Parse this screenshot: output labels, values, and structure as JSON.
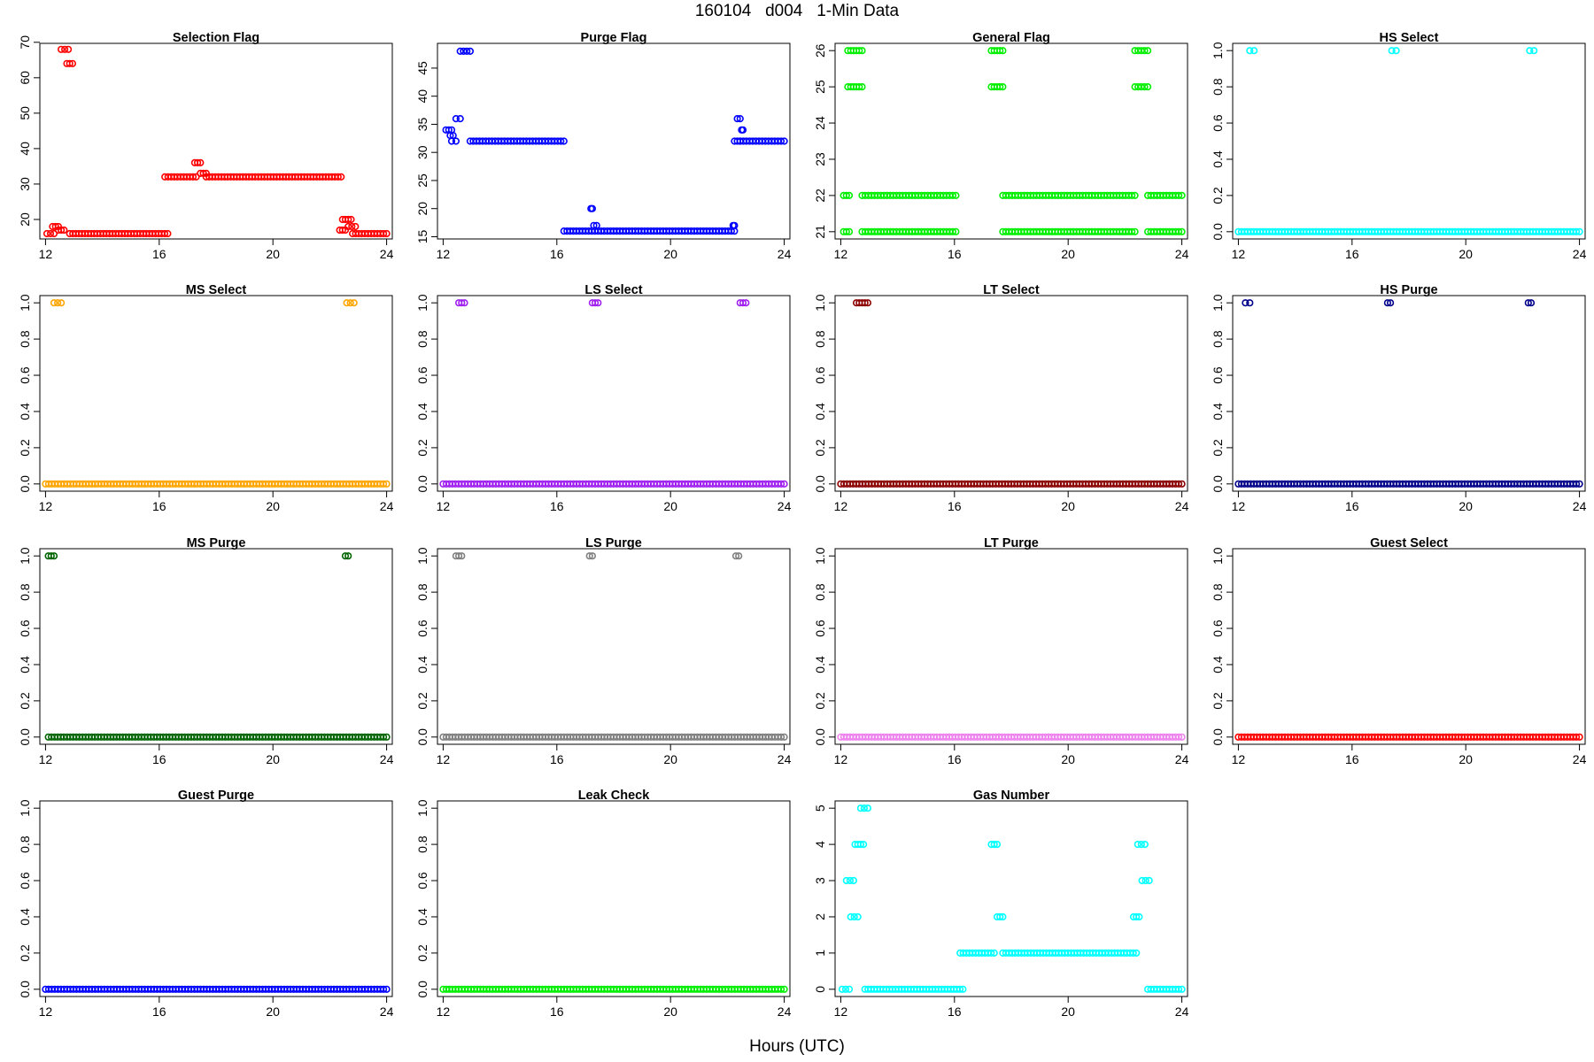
{
  "figure": {
    "title": "160104   d004   1-Min Data",
    "xlabel": "Hours (UTC)"
  },
  "chart_data": [
    {
      "type": "scatter",
      "title": "Selection Flag",
      "color": "#ff0000",
      "xlim": [
        11.8,
        24.2
      ],
      "xticks": [
        12,
        16,
        20,
        24
      ],
      "ylim": [
        14.5,
        69.7
      ],
      "yticks": [
        20,
        30,
        40,
        50,
        60,
        70
      ],
      "segments": [
        [
          12.05,
          12.3,
          16
        ],
        [
          12.25,
          12.45,
          18
        ],
        [
          12.45,
          12.65,
          17
        ],
        [
          12.55,
          12.8,
          68
        ],
        [
          12.75,
          12.95,
          64
        ],
        [
          12.85,
          16.3,
          16
        ],
        [
          16.2,
          17.3,
          32
        ],
        [
          17.25,
          17.45,
          36
        ],
        [
          17.45,
          17.65,
          33
        ],
        [
          17.65,
          22.4,
          32
        ],
        [
          22.35,
          22.55,
          17
        ],
        [
          22.45,
          22.75,
          20
        ],
        [
          22.65,
          22.9,
          18
        ],
        [
          22.8,
          24.0,
          16
        ]
      ]
    },
    {
      "type": "scatter",
      "title": "Purge Flag",
      "color": "#0000ff",
      "xlim": [
        11.8,
        24.2
      ],
      "xticks": [
        12,
        16,
        20,
        24
      ],
      "ylim": [
        14.6,
        49.4
      ],
      "yticks": [
        15,
        20,
        25,
        30,
        35,
        40,
        45
      ],
      "segments": [
        [
          12.1,
          12.3,
          34
        ],
        [
          12.25,
          12.35,
          33
        ],
        [
          12.3,
          12.45,
          32
        ],
        [
          12.45,
          12.6,
          36
        ],
        [
          12.6,
          12.95,
          48
        ],
        [
          12.95,
          16.25,
          32
        ],
        [
          16.25,
          22.25,
          16
        ],
        [
          17.2,
          17.25,
          20
        ],
        [
          17.3,
          17.4,
          17
        ],
        [
          22.2,
          22.25,
          17
        ],
        [
          22.25,
          22.45,
          32
        ],
        [
          22.35,
          22.45,
          36
        ],
        [
          22.5,
          22.55,
          34
        ],
        [
          22.45,
          24.0,
          32
        ]
      ]
    },
    {
      "type": "scatter",
      "title": "General Flag",
      "color": "#00ee00",
      "xlim": [
        11.8,
        24.2
      ],
      "xticks": [
        12,
        16,
        20,
        24
      ],
      "ylim": [
        20.8,
        26.2
      ],
      "yticks": [
        21,
        22,
        23,
        24,
        25,
        26
      ],
      "segments": [
        [
          12.1,
          12.3,
          22
        ],
        [
          12.1,
          12.3,
          21
        ],
        [
          12.25,
          12.75,
          26
        ],
        [
          12.25,
          12.75,
          25
        ],
        [
          12.75,
          16.05,
          22
        ],
        [
          12.75,
          16.05,
          21
        ],
        [
          17.3,
          17.7,
          26
        ],
        [
          17.3,
          17.7,
          25
        ],
        [
          17.7,
          22.35,
          22
        ],
        [
          17.7,
          22.35,
          21
        ],
        [
          22.35,
          22.8,
          26
        ],
        [
          22.35,
          22.8,
          25
        ],
        [
          22.8,
          24.0,
          22
        ],
        [
          22.8,
          24.0,
          21
        ]
      ]
    },
    {
      "type": "scatter",
      "title": "HS Select",
      "color": "#00ffff",
      "xlim": [
        11.8,
        24.2
      ],
      "xticks": [
        12,
        16,
        20,
        24
      ],
      "ylim": [
        -0.04,
        1.04
      ],
      "yticks": [
        0.0,
        0.2,
        0.4,
        0.6,
        0.8,
        1.0
      ],
      "yticklabels": [
        "0.0",
        "0.2",
        "0.4",
        "0.6",
        "0.8",
        "1.0"
      ],
      "segments": [
        [
          12.0,
          24.0,
          0
        ],
        [
          12.4,
          12.55,
          1
        ],
        [
          17.4,
          17.55,
          1
        ],
        [
          22.25,
          22.4,
          1
        ]
      ]
    },
    {
      "type": "scatter",
      "title": "MS Select",
      "color": "#ffa500",
      "xlim": [
        11.8,
        24.2
      ],
      "xticks": [
        12,
        16,
        20,
        24
      ],
      "ylim": [
        -0.04,
        1.04
      ],
      "yticks": [
        0.0,
        0.2,
        0.4,
        0.6,
        0.8,
        1.0
      ],
      "yticklabels": [
        "0.0",
        "0.2",
        "0.4",
        "0.6",
        "0.8",
        "1.0"
      ],
      "segments": [
        [
          12.0,
          24.0,
          0
        ],
        [
          12.3,
          12.55,
          1
        ],
        [
          22.6,
          22.85,
          1
        ]
      ]
    },
    {
      "type": "scatter",
      "title": "LS Select",
      "color": "#a020f0",
      "xlim": [
        11.8,
        24.2
      ],
      "xticks": [
        12,
        16,
        20,
        24
      ],
      "ylim": [
        -0.04,
        1.04
      ],
      "yticks": [
        0.0,
        0.2,
        0.4,
        0.6,
        0.8,
        1.0
      ],
      "yticklabels": [
        "0.0",
        "0.2",
        "0.4",
        "0.6",
        "0.8",
        "1.0"
      ],
      "segments": [
        [
          12.0,
          24.0,
          0
        ],
        [
          12.55,
          12.75,
          1
        ],
        [
          17.25,
          17.45,
          1
        ],
        [
          22.45,
          22.65,
          1
        ]
      ]
    },
    {
      "type": "scatter",
      "title": "LT Select",
      "color": "#8b0000",
      "xlim": [
        11.8,
        24.2
      ],
      "xticks": [
        12,
        16,
        20,
        24
      ],
      "ylim": [
        -0.04,
        1.04
      ],
      "yticks": [
        0.0,
        0.2,
        0.4,
        0.6,
        0.8,
        1.0
      ],
      "yticklabels": [
        "0.0",
        "0.2",
        "0.4",
        "0.6",
        "0.8",
        "1.0"
      ],
      "segments": [
        [
          12.0,
          24.0,
          0
        ],
        [
          12.55,
          12.95,
          1
        ]
      ]
    },
    {
      "type": "scatter",
      "title": "HS Purge",
      "color": "#00008b",
      "xlim": [
        11.8,
        24.2
      ],
      "xticks": [
        12,
        16,
        20,
        24
      ],
      "ylim": [
        -0.04,
        1.04
      ],
      "yticks": [
        0.0,
        0.2,
        0.4,
        0.6,
        0.8,
        1.0
      ],
      "yticklabels": [
        "0.0",
        "0.2",
        "0.4",
        "0.6",
        "0.8",
        "1.0"
      ],
      "segments": [
        [
          12.0,
          24.0,
          0
        ],
        [
          12.25,
          12.4,
          1
        ],
        [
          17.25,
          17.35,
          1
        ],
        [
          22.2,
          22.3,
          1
        ]
      ]
    },
    {
      "type": "scatter",
      "title": "MS Purge",
      "color": "#006400",
      "xlim": [
        11.8,
        24.2
      ],
      "xticks": [
        12,
        16,
        20,
        24
      ],
      "ylim": [
        -0.04,
        1.04
      ],
      "yticks": [
        0.0,
        0.2,
        0.4,
        0.6,
        0.8,
        1.0
      ],
      "yticklabels": [
        "0.0",
        "0.2",
        "0.4",
        "0.6",
        "0.8",
        "1.0"
      ],
      "segments": [
        [
          12.1,
          24.0,
          0
        ],
        [
          12.1,
          12.3,
          1
        ],
        [
          22.55,
          22.65,
          1
        ]
      ]
    },
    {
      "type": "scatter",
      "title": "LS Purge",
      "color": "#808080",
      "xlim": [
        11.8,
        24.2
      ],
      "xticks": [
        12,
        16,
        20,
        24
      ],
      "ylim": [
        -0.04,
        1.04
      ],
      "yticks": [
        0.0,
        0.2,
        0.4,
        0.6,
        0.8,
        1.0
      ],
      "yticklabels": [
        "0.0",
        "0.2",
        "0.4",
        "0.6",
        "0.8",
        "1.0"
      ],
      "segments": [
        [
          12.0,
          24.0,
          0
        ],
        [
          12.45,
          12.65,
          1
        ],
        [
          17.15,
          17.25,
          1
        ],
        [
          22.3,
          22.4,
          1
        ]
      ]
    },
    {
      "type": "scatter",
      "title": "LT Purge",
      "color": "#ee82ee",
      "xlim": [
        11.8,
        24.2
      ],
      "xticks": [
        12,
        16,
        20,
        24
      ],
      "ylim": [
        -0.04,
        1.04
      ],
      "yticks": [
        0.0,
        0.2,
        0.4,
        0.6,
        0.8,
        1.0
      ],
      "yticklabels": [
        "0.0",
        "0.2",
        "0.4",
        "0.6",
        "0.8",
        "1.0"
      ],
      "segments": [
        [
          12.0,
          24.0,
          0
        ]
      ]
    },
    {
      "type": "scatter",
      "title": "Guest Select",
      "color": "#ff0000",
      "xlim": [
        11.8,
        24.2
      ],
      "xticks": [
        12,
        16,
        20,
        24
      ],
      "ylim": [
        -0.04,
        1.04
      ],
      "yticks": [
        0.0,
        0.2,
        0.4,
        0.6,
        0.8,
        1.0
      ],
      "yticklabels": [
        "0.0",
        "0.2",
        "0.4",
        "0.6",
        "0.8",
        "1.0"
      ],
      "segments": [
        [
          12.0,
          24.0,
          0
        ]
      ]
    },
    {
      "type": "scatter",
      "title": "Guest Purge",
      "color": "#0000ff",
      "xlim": [
        11.8,
        24.2
      ],
      "xticks": [
        12,
        16,
        20,
        24
      ],
      "ylim": [
        -0.04,
        1.04
      ],
      "yticks": [
        0.0,
        0.2,
        0.4,
        0.6,
        0.8,
        1.0
      ],
      "yticklabels": [
        "0.0",
        "0.2",
        "0.4",
        "0.6",
        "0.8",
        "1.0"
      ],
      "segments": [
        [
          12.0,
          24.0,
          0
        ]
      ]
    },
    {
      "type": "scatter",
      "title": "Leak Check",
      "color": "#00ee00",
      "xlim": [
        11.8,
        24.2
      ],
      "xticks": [
        12,
        16,
        20,
        24
      ],
      "ylim": [
        -0.04,
        1.04
      ],
      "yticks": [
        0.0,
        0.2,
        0.4,
        0.6,
        0.8,
        1.0
      ],
      "yticklabels": [
        "0.0",
        "0.2",
        "0.4",
        "0.6",
        "0.8",
        "1.0"
      ],
      "segments": [
        [
          12.0,
          24.0,
          0
        ]
      ]
    },
    {
      "type": "scatter",
      "title": "Gas Number",
      "color": "#00ffff",
      "xlim": [
        11.8,
        24.2
      ],
      "xticks": [
        12,
        16,
        20,
        24
      ],
      "ylim": [
        -0.2,
        5.2
      ],
      "yticks": [
        0,
        1,
        2,
        3,
        4,
        5
      ],
      "segments": [
        [
          12.05,
          12.3,
          0
        ],
        [
          12.2,
          12.45,
          3
        ],
        [
          12.35,
          12.6,
          2
        ],
        [
          12.5,
          12.8,
          4
        ],
        [
          12.7,
          12.95,
          5
        ],
        [
          12.85,
          16.3,
          0
        ],
        [
          16.2,
          17.4,
          1
        ],
        [
          17.3,
          17.5,
          4
        ],
        [
          17.5,
          17.7,
          2
        ],
        [
          17.7,
          22.4,
          1
        ],
        [
          22.3,
          22.5,
          2
        ],
        [
          22.45,
          22.7,
          4
        ],
        [
          22.6,
          22.85,
          3
        ],
        [
          22.8,
          24.0,
          0
        ]
      ]
    }
  ]
}
